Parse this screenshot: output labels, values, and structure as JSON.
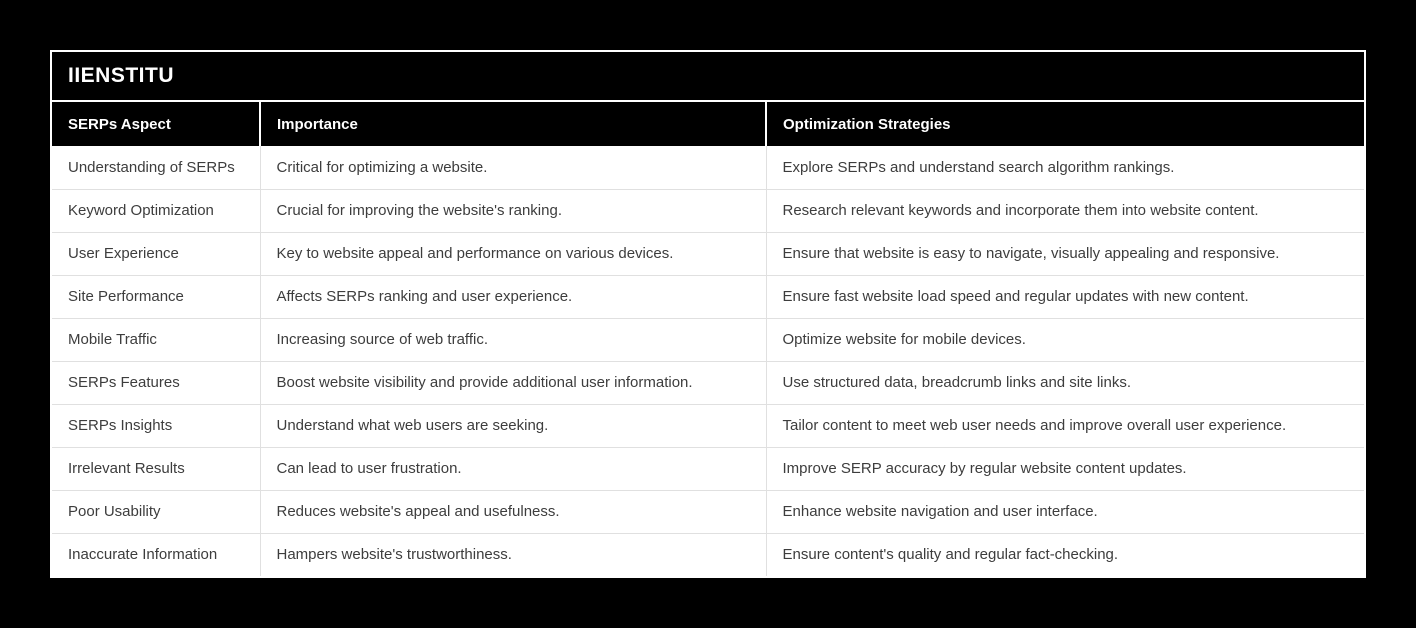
{
  "colors": {
    "page_background": "#000000",
    "header_background": "#000000",
    "header_text": "#ffffff",
    "body_text": "#3d3d3d",
    "divider": "#e0e0e0",
    "card_border": "#ffffff"
  },
  "chart_data": {
    "type": "table",
    "title": "IIENSTITU",
    "columns": [
      "SERPs Aspect",
      "Importance",
      "Optimization Strategies"
    ],
    "rows": [
      [
        "Understanding of SERPs",
        "Critical for optimizing a website.",
        "Explore SERPs and understand search algorithm rankings."
      ],
      [
        "Keyword Optimization",
        "Crucial for improving the website's ranking.",
        "Research relevant keywords and incorporate them into website content."
      ],
      [
        "User Experience",
        "Key to website appeal and performance on various devices.",
        "Ensure that website is easy to navigate, visually appealing and responsive."
      ],
      [
        "Site Performance",
        "Affects SERPs ranking and user experience.",
        "Ensure fast website load speed and regular updates with new content."
      ],
      [
        "Mobile Traffic",
        "Increasing source of web traffic.",
        "Optimize website for mobile devices."
      ],
      [
        "SERPs Features",
        "Boost website visibility and provide additional user information.",
        "Use structured data, breadcrumb links and site links."
      ],
      [
        "SERPs Insights",
        "Understand what web users are seeking.",
        "Tailor content to meet web user needs and improve overall user experience."
      ],
      [
        "Irrelevant Results",
        "Can lead to user frustration.",
        "Improve SERP accuracy by regular website content updates."
      ],
      [
        "Poor Usability",
        "Reduces website's appeal and usefulness.",
        "Enhance website navigation and user interface."
      ],
      [
        "Inaccurate Information",
        "Hampers website's trustworthiness.",
        "Ensure content's quality and regular fact-checking."
      ]
    ]
  }
}
